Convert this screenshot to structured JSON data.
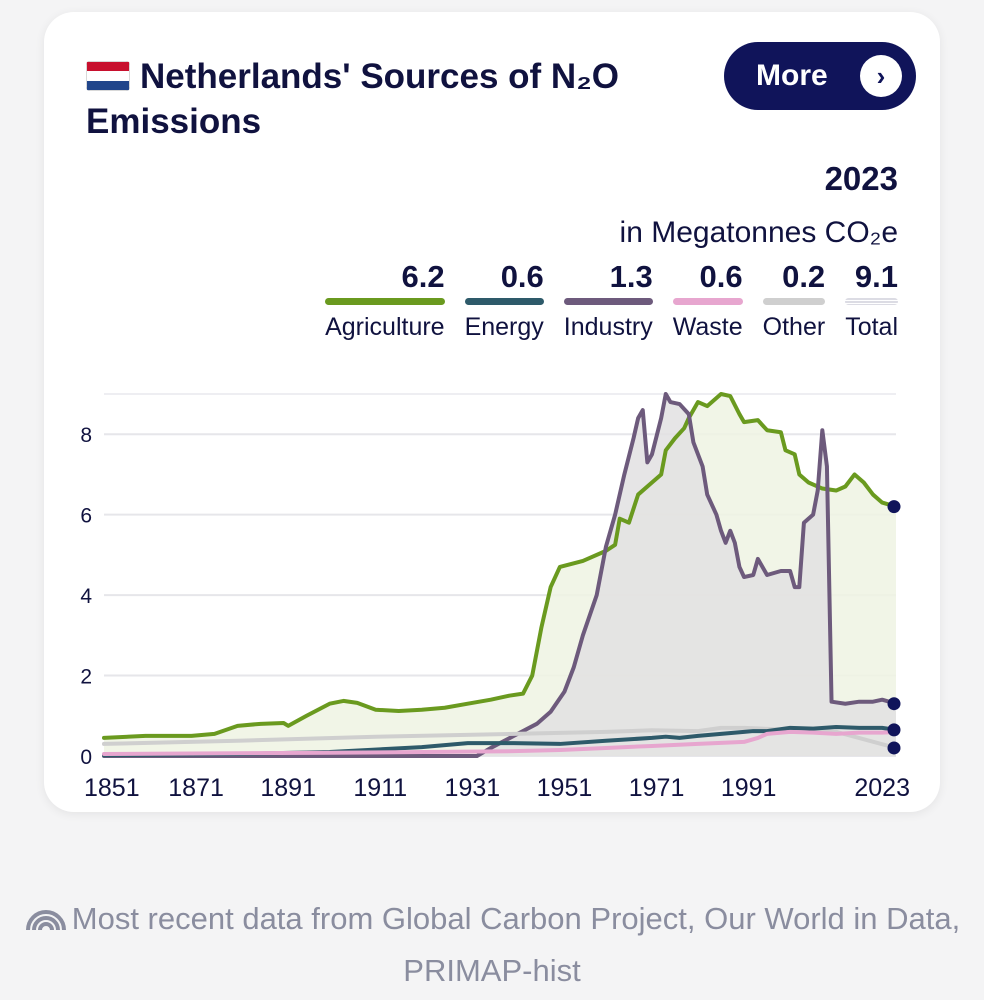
{
  "header": {
    "title": "Netherlands' Sources of N₂O Emissions",
    "more_label": "More",
    "more_chevron": "›",
    "year": "2023",
    "unit": "in Megatonnes CO₂e"
  },
  "legend": [
    {
      "label": "Agriculture",
      "value": "6.2",
      "color": "#6a9a1f"
    },
    {
      "label": "Energy",
      "value": "0.6",
      "color": "#2e5a6a"
    },
    {
      "label": "Industry",
      "value": "1.3",
      "color": "#6d5a7c"
    },
    {
      "label": "Waste",
      "value": "0.6",
      "color": "#e7a6cf"
    },
    {
      "label": "Other",
      "value": "0.2",
      "color": "#cfcfcf"
    },
    {
      "label": "Total",
      "value": "9.1",
      "color": "#e4e4ea"
    }
  ],
  "footer": {
    "icon": "rss-icon",
    "text": "Most recent data from Global Carbon Project, Our World in Data, PRIMAP-hist"
  },
  "chart_data": {
    "type": "line",
    "title": "Netherlands' Sources of N₂O Emissions",
    "ylabel": "Megatonnes CO₂e",
    "xlim": [
      1851,
      2023
    ],
    "ylim": [
      0,
      9
    ],
    "yticks": [
      "0",
      "2",
      "4",
      "6",
      "8"
    ],
    "xticks": [
      "1851",
      "1871",
      "1891",
      "1911",
      "1931",
      "1951",
      "1971",
      "1991",
      "2023"
    ],
    "series": [
      {
        "name": "Agriculture",
        "color": "#6a9a1f",
        "fill": "#eef3e3",
        "points": [
          [
            1851,
            0.45
          ],
          [
            1860,
            0.5
          ],
          [
            1870,
            0.5
          ],
          [
            1875,
            0.55
          ],
          [
            1880,
            0.75
          ],
          [
            1885,
            0.8
          ],
          [
            1890,
            0.82
          ],
          [
            1891,
            0.75
          ],
          [
            1895,
            1.0
          ],
          [
            1900,
            1.3
          ],
          [
            1903,
            1.37
          ],
          [
            1906,
            1.32
          ],
          [
            1910,
            1.15
          ],
          [
            1915,
            1.12
          ],
          [
            1920,
            1.15
          ],
          [
            1925,
            1.2
          ],
          [
            1930,
            1.3
          ],
          [
            1935,
            1.4
          ],
          [
            1939,
            1.5
          ],
          [
            1942,
            1.55
          ],
          [
            1944,
            2.0
          ],
          [
            1946,
            3.2
          ],
          [
            1948,
            4.2
          ],
          [
            1950,
            4.7
          ],
          [
            1955,
            4.85
          ],
          [
            1960,
            5.1
          ],
          [
            1962,
            5.25
          ],
          [
            1963,
            5.9
          ],
          [
            1965,
            5.8
          ],
          [
            1967,
            6.5
          ],
          [
            1970,
            6.8
          ],
          [
            1972,
            7.0
          ],
          [
            1973,
            7.6
          ],
          [
            1975,
            7.9
          ],
          [
            1977,
            8.15
          ],
          [
            1978,
            8.4
          ],
          [
            1980,
            8.8
          ],
          [
            1982,
            8.7
          ],
          [
            1985,
            9.0
          ],
          [
            1987,
            8.95
          ],
          [
            1989,
            8.5
          ],
          [
            1990,
            8.3
          ],
          [
            1993,
            8.35
          ],
          [
            1995,
            8.1
          ],
          [
            1998,
            8.05
          ],
          [
            1999,
            7.6
          ],
          [
            2001,
            7.5
          ],
          [
            2002,
            7.0
          ],
          [
            2004,
            6.8
          ],
          [
            2007,
            6.65
          ],
          [
            2010,
            6.6
          ],
          [
            2012,
            6.7
          ],
          [
            2014,
            7.0
          ],
          [
            2016,
            6.8
          ],
          [
            2018,
            6.5
          ],
          [
            2020,
            6.3
          ],
          [
            2023,
            6.2
          ]
        ]
      },
      {
        "name": "Industry",
        "color": "#6d5a7c",
        "fill": "#e2e0e2",
        "points": [
          [
            1851,
            0.0
          ],
          [
            1932,
            0.0
          ],
          [
            1935,
            0.2
          ],
          [
            1940,
            0.5
          ],
          [
            1945,
            0.8
          ],
          [
            1948,
            1.1
          ],
          [
            1951,
            1.6
          ],
          [
            1953,
            2.2
          ],
          [
            1955,
            3.0
          ],
          [
            1958,
            4.0
          ],
          [
            1960,
            5.2
          ],
          [
            1962,
            6.0
          ],
          [
            1964,
            7.0
          ],
          [
            1966,
            7.9
          ],
          [
            1967,
            8.4
          ],
          [
            1968,
            8.6
          ],
          [
            1969,
            7.3
          ],
          [
            1970,
            7.5
          ],
          [
            1972,
            8.4
          ],
          [
            1973,
            9.0
          ],
          [
            1974,
            8.8
          ],
          [
            1976,
            8.75
          ],
          [
            1978,
            8.5
          ],
          [
            1979,
            7.8
          ],
          [
            1981,
            7.2
          ],
          [
            1982,
            6.5
          ],
          [
            1984,
            6.0
          ],
          [
            1985,
            5.6
          ],
          [
            1986,
            5.3
          ],
          [
            1987,
            5.6
          ],
          [
            1988,
            5.3
          ],
          [
            1989,
            4.7
          ],
          [
            1990,
            4.45
          ],
          [
            1992,
            4.5
          ],
          [
            1993,
            4.9
          ],
          [
            1995,
            4.5
          ],
          [
            1998,
            4.6
          ],
          [
            2000,
            4.6
          ],
          [
            2001,
            4.2
          ],
          [
            2002,
            4.2
          ],
          [
            2003,
            5.8
          ],
          [
            2005,
            6.0
          ],
          [
            2006,
            6.6
          ],
          [
            2007,
            8.1
          ],
          [
            2008,
            7.2
          ],
          [
            2009,
            1.35
          ],
          [
            2012,
            1.3
          ],
          [
            2015,
            1.35
          ],
          [
            2018,
            1.35
          ],
          [
            2020,
            1.4
          ],
          [
            2023,
            1.3
          ]
        ]
      },
      {
        "name": "Other",
        "color": "#cfcfcf",
        "fill": "none",
        "points": [
          [
            1851,
            0.3
          ],
          [
            1880,
            0.38
          ],
          [
            1910,
            0.48
          ],
          [
            1940,
            0.55
          ],
          [
            1960,
            0.6
          ],
          [
            1970,
            0.64
          ],
          [
            1980,
            0.62
          ],
          [
            1985,
            0.7
          ],
          [
            1990,
            0.7
          ],
          [
            2000,
            0.65
          ],
          [
            2010,
            0.6
          ],
          [
            2023,
            0.2
          ]
        ]
      },
      {
        "name": "Energy",
        "color": "#2e5a6a",
        "fill": "none",
        "points": [
          [
            1851,
            0.02
          ],
          [
            1880,
            0.05
          ],
          [
            1900,
            0.1
          ],
          [
            1920,
            0.22
          ],
          [
            1930,
            0.32
          ],
          [
            1940,
            0.32
          ],
          [
            1950,
            0.3
          ],
          [
            1960,
            0.38
          ],
          [
            1970,
            0.45
          ],
          [
            1973,
            0.48
          ],
          [
            1976,
            0.45
          ],
          [
            1980,
            0.5
          ],
          [
            1985,
            0.55
          ],
          [
            1990,
            0.6
          ],
          [
            1992,
            0.62
          ],
          [
            1995,
            0.62
          ],
          [
            2000,
            0.7
          ],
          [
            2005,
            0.68
          ],
          [
            2010,
            0.72
          ],
          [
            2015,
            0.7
          ],
          [
            2020,
            0.7
          ],
          [
            2023,
            0.65
          ]
        ]
      },
      {
        "name": "Waste",
        "color": "#e7a6cf",
        "fill": "none",
        "points": [
          [
            1851,
            0.05
          ],
          [
            1900,
            0.08
          ],
          [
            1940,
            0.12
          ],
          [
            1950,
            0.15
          ],
          [
            1960,
            0.2
          ],
          [
            1970,
            0.25
          ],
          [
            1980,
            0.3
          ],
          [
            1990,
            0.35
          ],
          [
            1993,
            0.45
          ],
          [
            1995,
            0.55
          ],
          [
            2000,
            0.6
          ],
          [
            2005,
            0.58
          ],
          [
            2010,
            0.55
          ],
          [
            2015,
            0.58
          ],
          [
            2020,
            0.58
          ],
          [
            2023,
            0.6
          ]
        ]
      }
    ],
    "endpoints": [
      6.2,
      1.3,
      0.65,
      0.2
    ]
  }
}
